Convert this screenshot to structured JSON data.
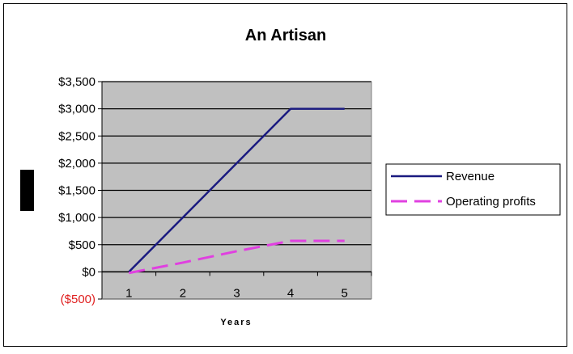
{
  "chart_data": {
    "type": "line",
    "title": "An Artisan",
    "xlabel": "Years",
    "ylabel": "",
    "categories": [
      "1",
      "2",
      "3",
      "4",
      "5"
    ],
    "ylim": [
      -500,
      3500
    ],
    "y_ticks": [
      -500,
      0,
      500,
      1000,
      1500,
      2000,
      2500,
      3000,
      3500
    ],
    "y_tick_labels": [
      "($500)",
      "$0",
      "$500",
      "$1,000",
      "$1,500",
      "$2,000",
      "$2,500",
      "$3,000",
      "$3,500"
    ],
    "grid": true,
    "legend_position": "right",
    "series": [
      {
        "name": "Revenue",
        "values": [
          0,
          1000,
          2000,
          3000,
          3000
        ],
        "color": "#1a1a80",
        "style": "solid"
      },
      {
        "name": "Operating profits",
        "values": [
          -20,
          170,
          380,
          570,
          570
        ],
        "color": "#e040e0",
        "style": "dashed"
      }
    ],
    "colors": {
      "plot_bg": "#c0c0c0",
      "negative_tick": "#e02020"
    }
  }
}
